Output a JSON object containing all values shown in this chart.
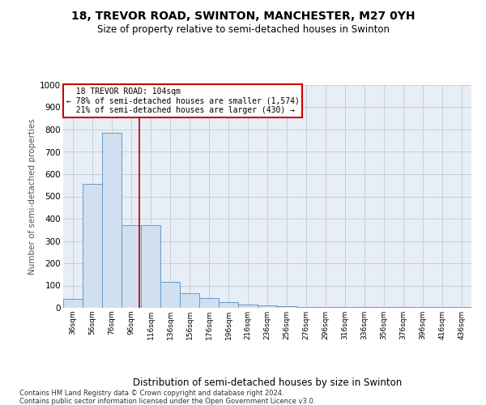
{
  "title": "18, TREVOR ROAD, SWINTON, MANCHESTER, M27 0YH",
  "subtitle": "Size of property relative to semi-detached houses in Swinton",
  "xlabel": "Distribution of semi-detached houses by size in Swinton",
  "ylabel": "Number of semi-detached properties",
  "bar_heights": [
    40,
    558,
    785,
    370,
    370,
    117,
    65,
    45,
    25,
    13,
    10,
    8,
    5,
    5,
    5,
    5,
    5,
    5,
    5,
    5,
    5
  ],
  "bar_labels": [
    "36sqm",
    "56sqm",
    "76sqm",
    "96sqm",
    "116sqm",
    "136sqm",
    "156sqm",
    "176sqm",
    "196sqm",
    "216sqm",
    "236sqm",
    "256sqm",
    "276sqm",
    "296sqm",
    "316sqm",
    "336sqm",
    "356sqm",
    "376sqm",
    "396sqm",
    "416sqm",
    "436sqm"
  ],
  "property_sqm": 104,
  "property_label": "18 TREVOR ROAD: 104sqm",
  "pct_smaller": 78,
  "n_smaller": 1574,
  "pct_larger": 21,
  "n_larger": 430,
  "bar_facecolor": "#d0e0f0",
  "bar_edgecolor": "#6699cc",
  "vline_color": "#aa0000",
  "ylim": [
    0,
    1000
  ],
  "yticks": [
    0,
    100,
    200,
    300,
    400,
    500,
    600,
    700,
    800,
    900,
    1000
  ],
  "bg_color": "#e8eef5",
  "grid_color": "#c0cad4",
  "ann_fc": "#ffffff",
  "ann_ec": "#cc0000",
  "footer1": "Contains HM Land Registry data © Crown copyright and database right 2024.",
  "footer2": "Contains public sector information licensed under the Open Government Licence v3.0."
}
